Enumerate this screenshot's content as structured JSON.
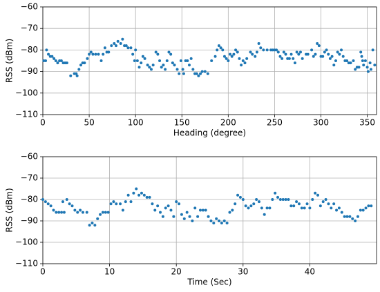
{
  "chart_data": [
    {
      "type": "scatter",
      "xlabel": "Heading (degree)",
      "ylabel": "RSS (dBm)",
      "color": "#1f77b4",
      "grid": true,
      "xlim": [
        0,
        360
      ],
      "xticks": [
        0,
        50,
        100,
        150,
        200,
        250,
        300,
        350
      ],
      "ylim": [
        -110,
        -60
      ],
      "yticks": [
        {
          "value": -60,
          "label": "−60"
        },
        {
          "value": -70,
          "label": "−70"
        },
        {
          "value": -80,
          "label": "−80"
        },
        {
          "value": -90,
          "label": "−90"
        },
        {
          "value": -100,
          "label": "−100"
        },
        {
          "value": -110,
          "label": "−110"
        }
      ],
      "x": [
        1,
        3,
        4,
        6,
        8,
        10,
        12,
        14,
        16,
        18,
        20,
        22,
        24,
        26,
        30,
        34,
        36,
        37,
        39,
        41,
        43,
        45,
        48,
        50,
        52,
        54,
        57,
        60,
        63,
        65,
        67,
        69,
        71,
        74,
        77,
        79,
        81,
        84,
        86,
        88,
        90,
        92,
        95,
        97,
        99,
        100,
        102,
        104,
        106,
        108,
        110,
        113,
        115,
        117,
        119,
        122,
        124,
        126,
        128,
        130,
        132,
        134,
        136,
        138,
        140,
        142,
        145,
        147,
        149,
        151,
        152,
        154,
        156,
        158,
        160,
        162,
        164,
        166,
        168,
        170,
        172,
        175,
        178,
        182,
        186,
        188,
        190,
        192,
        194,
        196,
        198,
        200,
        202,
        204,
        206,
        208,
        210,
        212,
        214,
        216,
        218,
        220,
        224,
        226,
        229,
        231,
        233,
        235,
        238,
        242,
        246,
        248,
        250,
        252,
        254,
        256,
        258,
        260,
        262,
        264,
        266,
        268,
        270,
        272,
        274,
        276,
        278,
        280,
        284,
        286,
        290,
        292,
        294,
        296,
        298,
        300,
        302,
        304,
        306,
        308,
        310,
        312,
        314,
        316,
        318,
        320,
        322,
        324,
        326,
        328,
        330,
        332,
        335,
        337,
        339,
        341,
        343,
        344,
        345,
        346,
        348,
        350,
        351,
        353,
        354,
        356,
        358
      ],
      "y": [
        -85,
        -85,
        -80,
        -82,
        -83,
        -83,
        -84,
        -85,
        -86,
        -85,
        -85,
        -86,
        -86,
        -86,
        -92,
        -91,
        -91,
        -92,
        -89,
        -87,
        -86,
        -86,
        -84,
        -82,
        -81,
        -82,
        -82,
        -82,
        -85,
        -82,
        -79,
        -81,
        -81,
        -78,
        -77,
        -78,
        -76,
        -77,
        -75,
        -78,
        -78,
        -79,
        -79,
        -82,
        -85,
        -80,
        -85,
        -88,
        -86,
        -83,
        -84,
        -87,
        -88,
        -89,
        -87,
        -81,
        -82,
        -85,
        -88,
        -87,
        -89,
        -85,
        -81,
        -82,
        -86,
        -87,
        -89,
        -91,
        -85,
        -89,
        -91,
        -85,
        -85,
        -87,
        -84,
        -89,
        -91,
        -91,
        -92,
        -91,
        -90,
        -90,
        -91,
        -85,
        -83,
        -80,
        -78,
        -79,
        -80,
        -83,
        -84,
        -85,
        -82,
        -83,
        -82,
        -80,
        -81,
        -84,
        -87,
        -85,
        -86,
        -84,
        -81,
        -82,
        -83,
        -81,
        -77,
        -79,
        -80,
        -80,
        -80,
        -80,
        -80,
        -80,
        -81,
        -83,
        -84,
        -81,
        -82,
        -84,
        -84,
        -82,
        -84,
        -86,
        -81,
        -82,
        -81,
        -84,
        -82,
        -82,
        -80,
        -83,
        -82,
        -77,
        -78,
        -83,
        -83,
        -81,
        -80,
        -82,
        -84,
        -83,
        -87,
        -85,
        -81,
        -82,
        -80,
        -83,
        -85,
        -85,
        -86,
        -86,
        -85,
        -89,
        -88,
        -88,
        -81,
        -83,
        -85,
        -87,
        -85,
        -88,
        -90,
        -86,
        -89,
        -80,
        -87
      ]
    },
    {
      "type": "scatter",
      "xlabel": "Time (Sec)",
      "ylabel": "RSS (dBm)",
      "color": "#1f77b4",
      "grid": true,
      "xlim": [
        0,
        50
      ],
      "xticks": [
        0,
        10,
        20,
        30,
        40
      ],
      "ylim": [
        -110,
        -60
      ],
      "yticks": [
        {
          "value": -60,
          "label": "−60"
        },
        {
          "value": -70,
          "label": "−70"
        },
        {
          "value": -80,
          "label": "−80"
        },
        {
          "value": -90,
          "label": "−90"
        },
        {
          "value": -100,
          "label": "−100"
        },
        {
          "value": -110,
          "label": "−110"
        }
      ],
      "x": [
        0,
        0.4,
        0.8,
        1.2,
        1.6,
        2,
        2.4,
        2.8,
        3.2,
        3,
        3.6,
        4,
        4.4,
        4.8,
        5.2,
        5.6,
        6,
        6.6,
        7,
        7.4,
        7.8,
        8.2,
        8.6,
        9,
        9.4,
        9.8,
        10.2,
        10.6,
        11,
        11.6,
        12,
        12.4,
        12.8,
        13.2,
        13.6,
        14,
        14.4,
        14.8,
        15.2,
        15.6,
        16,
        16.4,
        16.8,
        17.2,
        17.6,
        18,
        18.4,
        18.8,
        19.2,
        19.6,
        20,
        20.4,
        20.8,
        21.2,
        21.6,
        22,
        22.4,
        22.8,
        23.2,
        23.6,
        24,
        24.4,
        24.8,
        25.2,
        25.6,
        26,
        26.4,
        26.8,
        27.2,
        27.6,
        28,
        28.4,
        28.8,
        29.2,
        29.6,
        30,
        30.4,
        30.8,
        31.2,
        31.6,
        32,
        32.4,
        32.8,
        33.2,
        33.6,
        34,
        34.4,
        34.8,
        35.2,
        35.6,
        36,
        36.4,
        36.8,
        37.2,
        37.6,
        38,
        38.4,
        38.8,
        39.2,
        39.6,
        40,
        40.4,
        40.8,
        41.2,
        41.6,
        42,
        42.4,
        42.8,
        43.2,
        43.6,
        44,
        44.4,
        44.8,
        45.2,
        45.6,
        46,
        46.4,
        46.8,
        47.2,
        47.6,
        48,
        48.4,
        48.8,
        49.2
      ],
      "y": [
        -80,
        -81,
        -82,
        -83,
        -85,
        -86,
        -86,
        -86,
        -86,
        -81,
        -80,
        -82,
        -83,
        -85,
        -86,
        -85,
        -86,
        -86,
        -92,
        -91,
        -92,
        -89,
        -87,
        -86,
        -86,
        -86,
        -82,
        -81,
        -82,
        -82,
        -85,
        -81,
        -78,
        -81,
        -77,
        -75,
        -78,
        -77,
        -78,
        -79,
        -79,
        -82,
        -85,
        -83,
        -86,
        -88,
        -84,
        -83,
        -85,
        -88,
        -81,
        -82,
        -87,
        -89,
        -86,
        -88,
        -90,
        -84,
        -88,
        -85,
        -85,
        -85,
        -88,
        -90,
        -91,
        -89,
        -90,
        -91,
        -90,
        -91,
        -86,
        -85,
        -82,
        -78,
        -79,
        -80,
        -83,
        -84,
        -83,
        -82,
        -80,
        -81,
        -84,
        -87,
        -84,
        -84,
        -80,
        -77,
        -79,
        -80,
        -80,
        -80,
        -80,
        -83,
        -83,
        -81,
        -82,
        -84,
        -84,
        -82,
        -84,
        -80,
        -77,
        -78,
        -83,
        -81,
        -80,
        -82,
        -84,
        -82,
        -85,
        -84,
        -86,
        -88,
        -88,
        -88,
        -89,
        -90,
        -88,
        -85,
        -85,
        -84,
        -83,
        -83
      ]
    }
  ]
}
